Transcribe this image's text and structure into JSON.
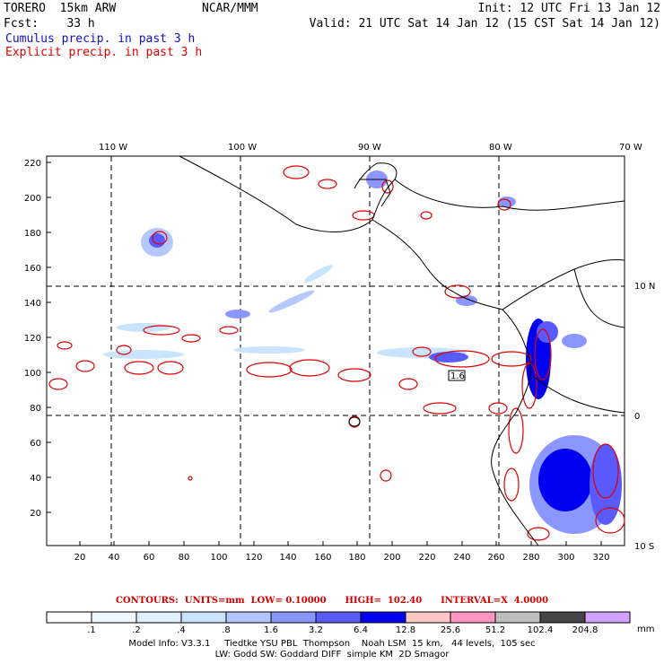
{
  "header": {
    "model": "TORERO  15km ARW",
    "org": "NCAR/MMM",
    "init": "Init: 12 UTC Fri 13 Jan 12",
    "fcst": "Fcst:    33 h",
    "valid": "Valid: 21 UTC Sat 14 Jan 12 (15 CST Sat 14 Jan 12)",
    "cumulus_label": "Cumulus precip. in past 3 h",
    "explicit_label": "Explicit precip. in past 3 h"
  },
  "colors": {
    "cumulus": "#1010c8",
    "explicit": "#e00000",
    "coast": "#000000",
    "grid": "#000000"
  },
  "map": {
    "lon_labels": [
      "110 W",
      "100 W",
      "90 W",
      "80 W",
      "70 W"
    ],
    "lat_labels": [
      "10 N",
      "0",
      "10 S"
    ],
    "y_ticks": [
      "220",
      "200",
      "180",
      "160",
      "140",
      "120",
      "100",
      "80",
      "60",
      "40",
      "20"
    ],
    "x_ticks": [
      "20",
      "40",
      "60",
      "80",
      "100",
      "120",
      "140",
      "160",
      "180",
      "200",
      "220",
      "240",
      "260",
      "280",
      "300",
      "320"
    ],
    "box_label": "1.6"
  },
  "contours_text": "CONTOURS:  UNITS=mm  LOW= 0.10000      HIGH=  102.40      INTERVAL=X  4.0000",
  "colorbar": {
    "colors": [
      "#ffffff",
      "#f0f8ff",
      "#e0f0ff",
      "#c8e4ff",
      "#b4c8ff",
      "#8c96ff",
      "#5a5aff",
      "#0000f0",
      "#ffc8c8",
      "#ff96c0",
      "#bebebe",
      "#464646",
      "#d2a0ff"
    ],
    "labels": [
      ".1",
      ".2",
      ".4",
      ".8",
      "1.6",
      "3.2",
      "6.4",
      "12.8",
      "25.6",
      "51.2",
      "102.4",
      "204.8"
    ],
    "unit": "mm"
  },
  "footer": {
    "line1": "Model Info: V3.3.1     Tiedtke YSU PBL  Thompson    Noah LSM  15 km,   44 levels,  105 sec",
    "line2": "LW: Godd SW: Goddard DIFF  simple KM  2D Smagor"
  }
}
